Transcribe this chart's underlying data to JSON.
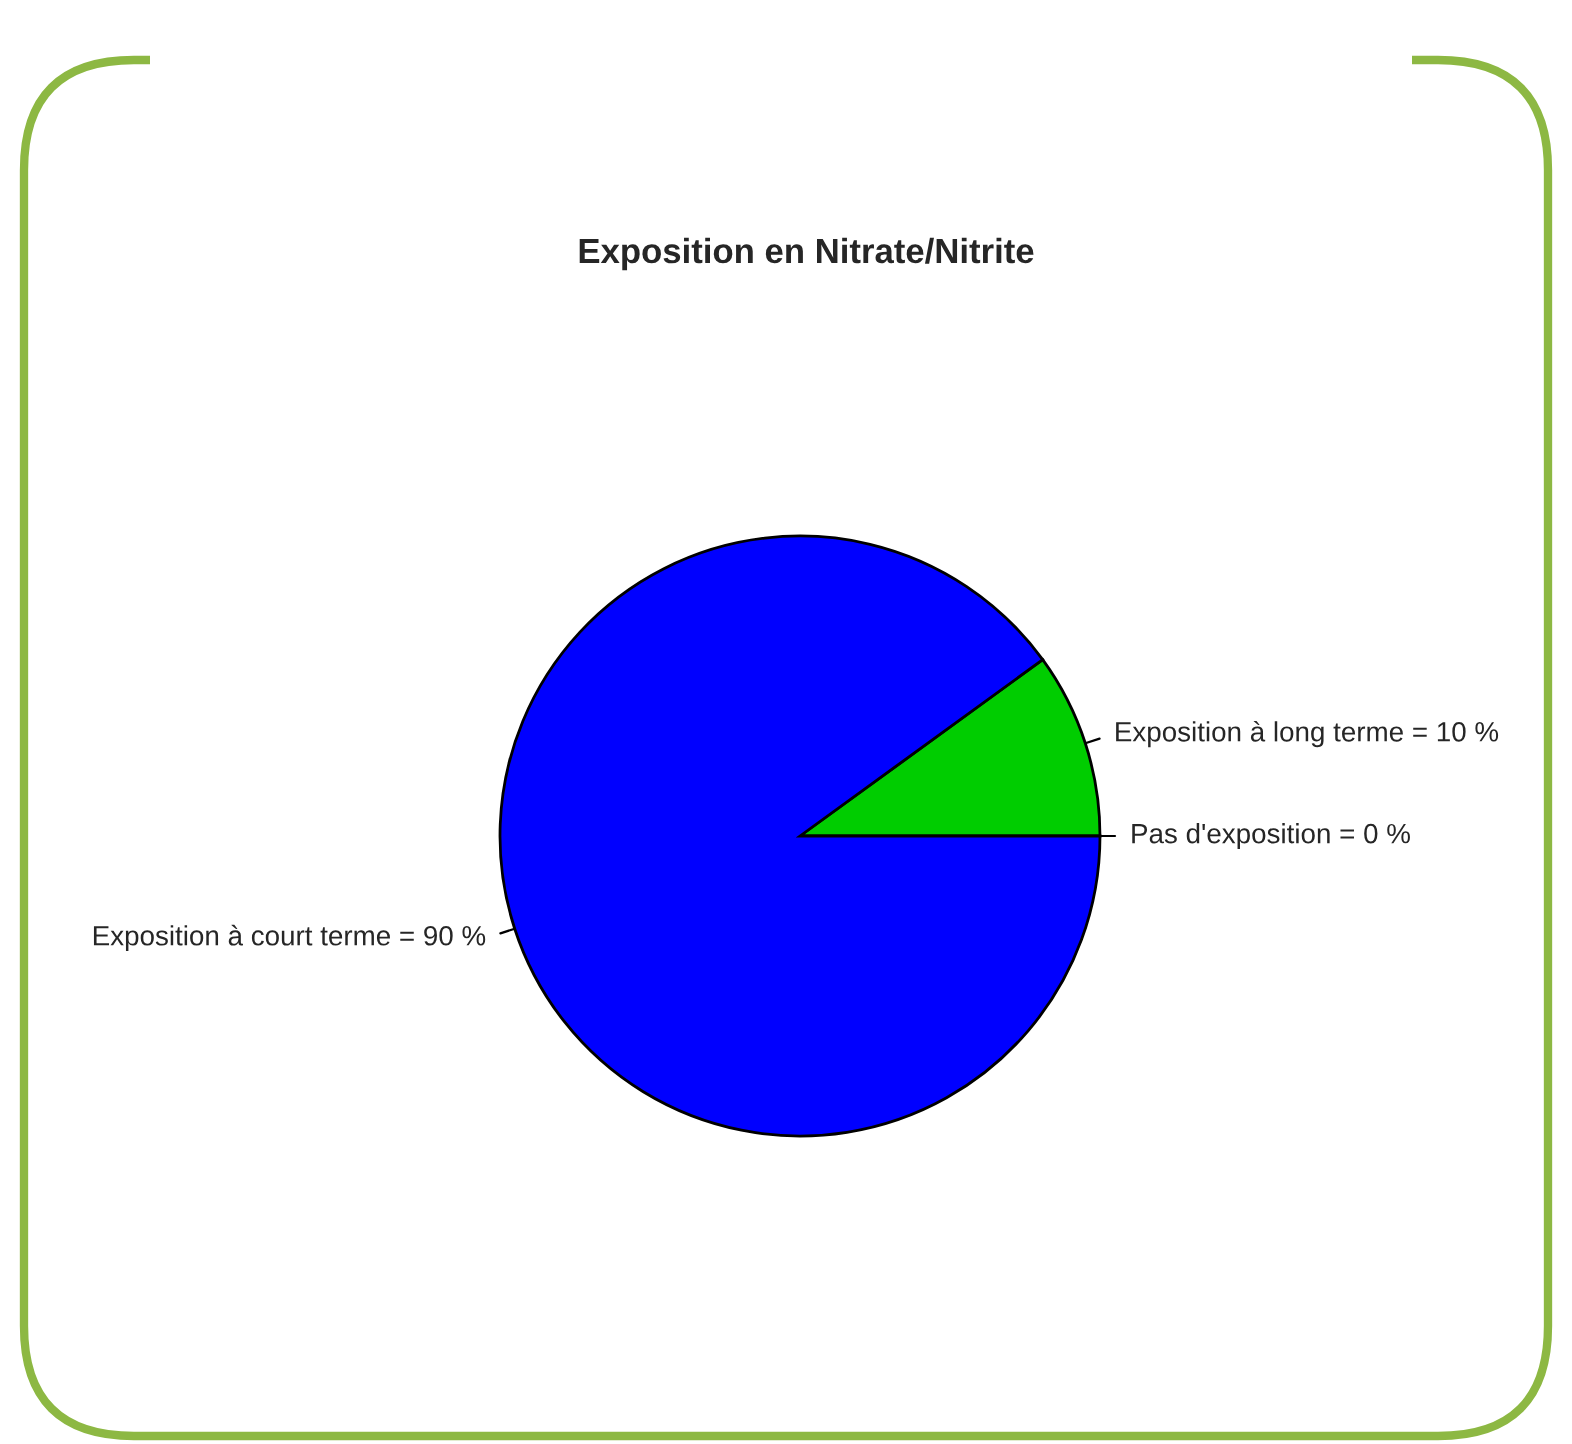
{
  "chart_data": {
    "type": "pie",
    "title": "Exposition en Nitrate/Nitrite",
    "categories": [
      "Pas d'exposition = 0 %",
      "Exposition à long terme = 10 %",
      "Exposition à court terme = 90 %"
    ],
    "values": [
      0,
      10,
      90
    ],
    "colors": [
      "#ffffff",
      "#00cd00",
      "#0000ff"
    ]
  }
}
